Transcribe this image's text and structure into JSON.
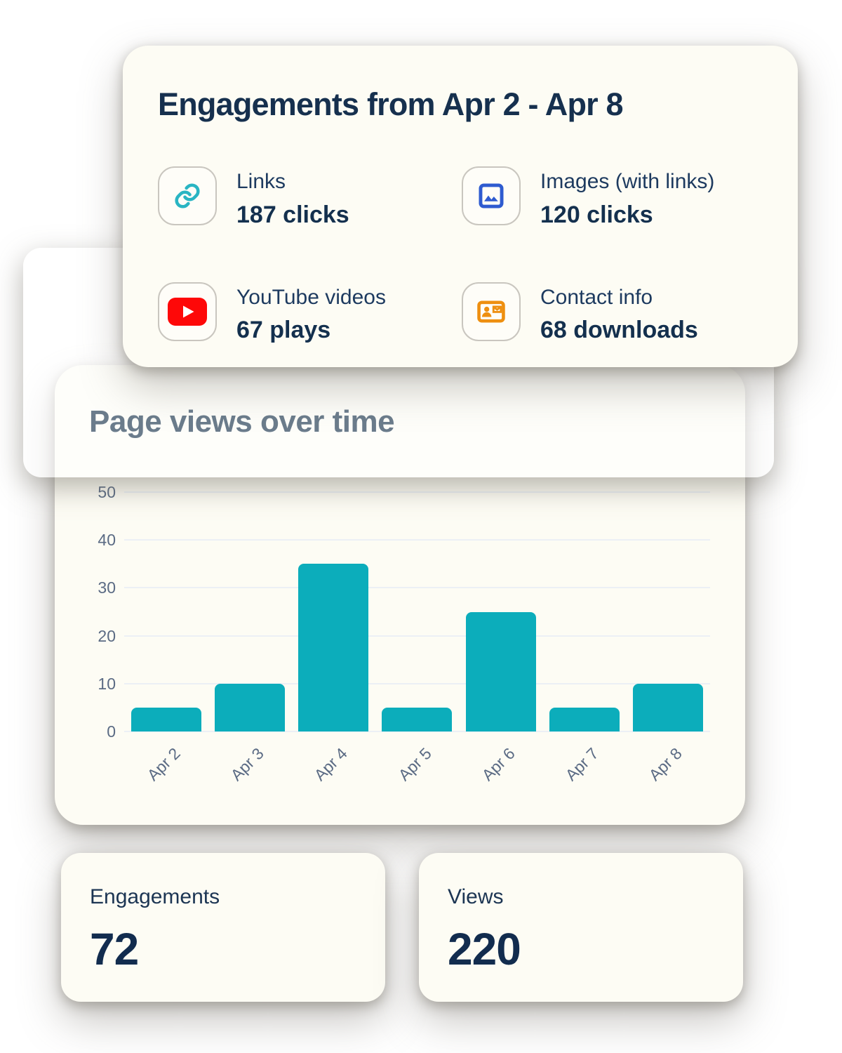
{
  "engagement_card": {
    "title": "Engagements from Apr 2 - Apr 8",
    "stats": [
      {
        "icon": "link-icon",
        "label": "Links",
        "value": "187 clicks",
        "color": "#29b5c3"
      },
      {
        "icon": "image-icon",
        "label": "Images (with links)",
        "value": "120 clicks",
        "color": "#2e5bd0"
      },
      {
        "icon": "youtube-icon",
        "label": "YouTube videos",
        "value": "67 plays",
        "color": "#fe0808"
      },
      {
        "icon": "contact-card-icon",
        "label": "Contact info",
        "value": "68 downloads",
        "color": "#ee8f10"
      }
    ]
  },
  "chart_data": {
    "type": "bar",
    "title": "Page views over time",
    "categories": [
      "Apr 2",
      "Apr 3",
      "Apr 4",
      "Apr 5",
      "Apr 6",
      "Apr 7",
      "Apr 8"
    ],
    "values": [
      5,
      10,
      35,
      5,
      25,
      5,
      10
    ],
    "xlabel": "",
    "ylabel": "",
    "ylim": [
      0,
      50
    ],
    "yticks": [
      0,
      10,
      20,
      30,
      40,
      50
    ],
    "grid": true,
    "legend": "none",
    "bar_color": "#0cadbb"
  },
  "summary_cards": [
    {
      "label": "Engagements",
      "value": "72"
    },
    {
      "label": "Views",
      "value": "220"
    }
  ],
  "colors": {
    "card_background": "#fdfcf4",
    "navy_text": "#16304e",
    "muted_heading": "#6b7c8c",
    "axis_text": "#5b6b84",
    "bar_teal": "#0cadbb"
  }
}
